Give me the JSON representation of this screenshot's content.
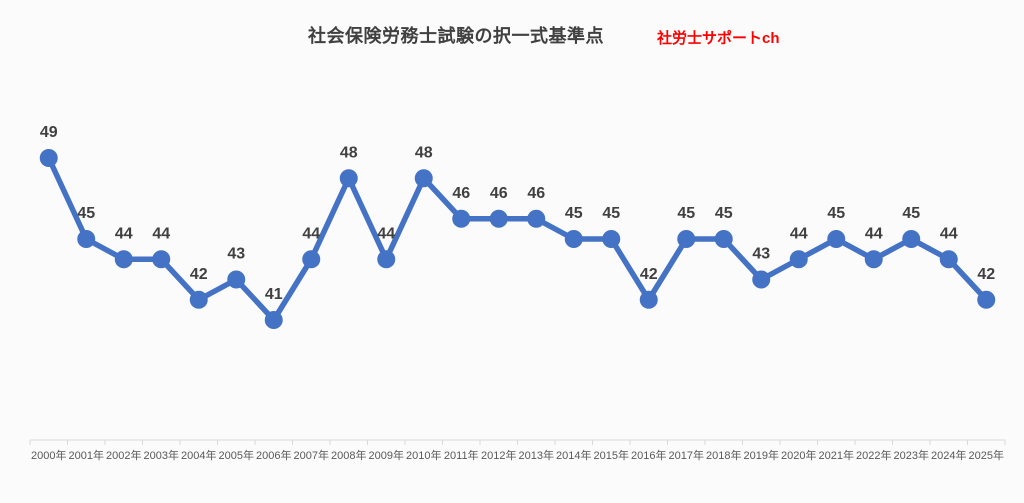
{
  "header": {
    "title": "社会保険労務士試験の択一式基準点",
    "brand": "社労士サポートch"
  },
  "chart_data": {
    "type": "line",
    "title": "社会保険労務士試験の択一式基準点",
    "categories": [
      "2000年",
      "2001年",
      "2002年",
      "2003年",
      "2004年",
      "2005年",
      "2006年",
      "2007年",
      "2008年",
      "2009年",
      "2010年",
      "2011年",
      "2012年",
      "2013年",
      "2014年",
      "2015年",
      "2016年",
      "2017年",
      "2018年",
      "2019年",
      "2020年",
      "2021年",
      "2022年",
      "2023年",
      "2024年",
      "2025年"
    ],
    "values": [
      49,
      45,
      44,
      44,
      42,
      43,
      41,
      44,
      48,
      44,
      48,
      46,
      46,
      46,
      45,
      45,
      42,
      45,
      45,
      43,
      44,
      45,
      44,
      45,
      44,
      42
    ],
    "xlabel": "",
    "ylabel": "",
    "ylim": [
      40,
      50
    ],
    "grid": false,
    "legend_position": "none",
    "data_labels": true,
    "marker": "circle",
    "colors": {
      "series": "#4472C4",
      "data_label": "#404040",
      "axis_line": "#d9d9d9",
      "axis_tick_label": "#595959",
      "title": "#404040",
      "brand": "#ff0000",
      "background": "#fbfbfb"
    }
  }
}
